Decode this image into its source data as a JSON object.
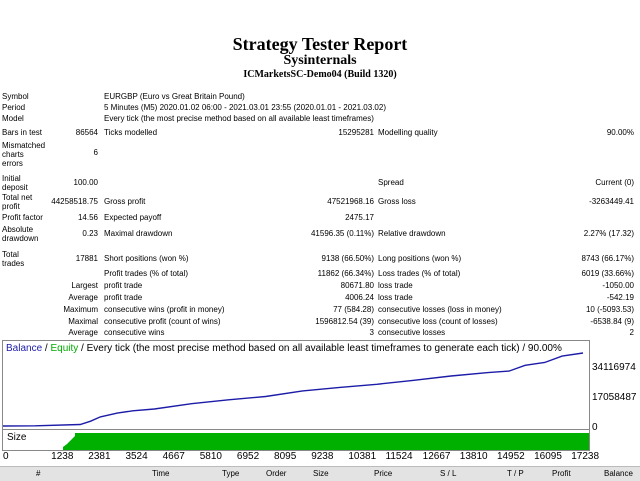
{
  "report": {
    "title": "Strategy Tester Report",
    "subtitle": "Sysinternals",
    "server": "ICMarketsSC-Demo04 (Build 1320)"
  },
  "info": {
    "symbol_label": "Symbol",
    "symbol_value": "EURGBP (Euro vs Great Britain Pound)",
    "period_label": "Period",
    "period_value": "5 Minutes (M5) 2020.01.02 06:00 - 2021.03.01 23:55 (2020.01.01 - 2021.03.02)",
    "model_label": "Model",
    "model_value": "Every tick (the most precise method based on all available least timeframes)"
  },
  "stats": {
    "bars_label": "Bars in test",
    "bars_value": "86564",
    "ticks_label": "Ticks modelled",
    "ticks_value": "15295281",
    "quality_label": "Modelling quality",
    "quality_value": "90.00%",
    "mismatched_l1": "Mismatched",
    "mismatched_l2": "charts",
    "mismatched_l3": "errors",
    "mismatched_value": "6",
    "deposit_l1": "Initial",
    "deposit_l2": "deposit",
    "deposit_value": "100.00",
    "spread_label": "Spread",
    "spread_value": "Current (0)",
    "netprofit_l1": "Total net",
    "netprofit_l2": "profit",
    "netprofit_value": "44258518.75",
    "grossprofit_label": "Gross profit",
    "grossprofit_value": "47521968.16",
    "grossloss_label": "Gross loss",
    "grossloss_value": "-3263449.41",
    "pf_label": "Profit factor",
    "pf_value": "14.56",
    "payoff_label": "Expected payoff",
    "payoff_value": "2475.17",
    "absdd_l1": "Absolute",
    "absdd_l2": "drawdown",
    "absdd_value": "0.23",
    "maxdd_label": "Maximal drawdown",
    "maxdd_value": "41596.35 (0.11%)",
    "reldd_label": "Relative drawdown",
    "reldd_value": "2.27% (17.32)",
    "trades_l1": "Total",
    "trades_l2": "trades",
    "trades_value": "17881",
    "short_label": "Short positions (won %)",
    "short_value": "9138 (66.50%)",
    "long_label": "Long positions (won %)",
    "long_value": "8743 (66.17%)",
    "profit_trades_label": "Profit trades (% of total)",
    "profit_trades_value": "11862 (66.34%)",
    "loss_trades_label": "Loss trades (% of total)",
    "loss_trades_value": "6019 (33.66%)",
    "largest_label": "Largest",
    "largest_profit_label": "profit trade",
    "largest_profit_value": "80671.80",
    "largest_loss_label": "loss trade",
    "largest_loss_value": "-1050.00",
    "average_label": "Average",
    "average_profit_label": "profit trade",
    "average_profit_value": "4006.24",
    "average_loss_label": "loss trade",
    "average_loss_value": "-542.19",
    "maximum_label": "Maximum",
    "max_wins_label": "consecutive wins (profit in money)",
    "max_wins_value": "77 (584.28)",
    "max_losses_label": "consecutive losses (loss in money)",
    "max_losses_value": "10 (-5093.53)",
    "maximal_label": "Maximal",
    "max_profit_label": "consecutive profit (count of wins)",
    "max_profit_value": "1596812.54 (39)",
    "max_loss_label": "consecutive loss (count of losses)",
    "max_loss_value": "-6538.84 (9)",
    "avg_consec_label": "Average",
    "avg_wins_label": "consecutive wins",
    "avg_wins_value": "3",
    "avg_losses_label": "consecutive losses",
    "avg_losses_value": "2"
  },
  "chart": {
    "legend_balance": "Balance",
    "sep1": " / ",
    "legend_equity": "Equity",
    "rest": " / Every tick (the most precise method based on all available least timeframes to generate each tick) / 90.00%",
    "size_label": "Size",
    "colors": {
      "balance": "#1c1ca8",
      "equity": "#00aa00",
      "size": "#00b000"
    }
  },
  "chart_data": {
    "type": "line",
    "title": "",
    "xlabel": "",
    "ylabel": "",
    "x_ticks": [
      "0",
      "1238",
      "2381",
      "3524",
      "4667",
      "5810",
      "6952",
      "8095",
      "9238",
      "10381",
      "11524",
      "12667",
      "13810",
      "14952",
      "16095",
      "17238"
    ],
    "y_ticks": [
      "34116974",
      "17058487",
      "0"
    ],
    "ylim": [
      0,
      44258619
    ],
    "xlim": [
      0,
      17881
    ],
    "series": [
      {
        "name": "Balance",
        "x": [
          0,
          1000,
          2381,
          2700,
          3000,
          3524,
          4000,
          4667,
          5810,
          6952,
          8095,
          9238,
          10381,
          11524,
          12667,
          13810,
          14952,
          15600,
          16095,
          16700,
          17238,
          17881
        ],
        "y": [
          100,
          150000,
          900000,
          2900000,
          5500000,
          7800000,
          9200000,
          10300000,
          13500000,
          15900000,
          17900000,
          21300000,
          23400000,
          25300000,
          27700000,
          30300000,
          32400000,
          33300000,
          36800000,
          38500000,
          42400000,
          44258519
        ]
      }
    ]
  },
  "table": {
    "columns": [
      "#",
      "Time",
      "Type",
      "Order",
      "Size",
      "Price",
      "S / L",
      "T / P",
      "Profit",
      "Balance"
    ]
  }
}
